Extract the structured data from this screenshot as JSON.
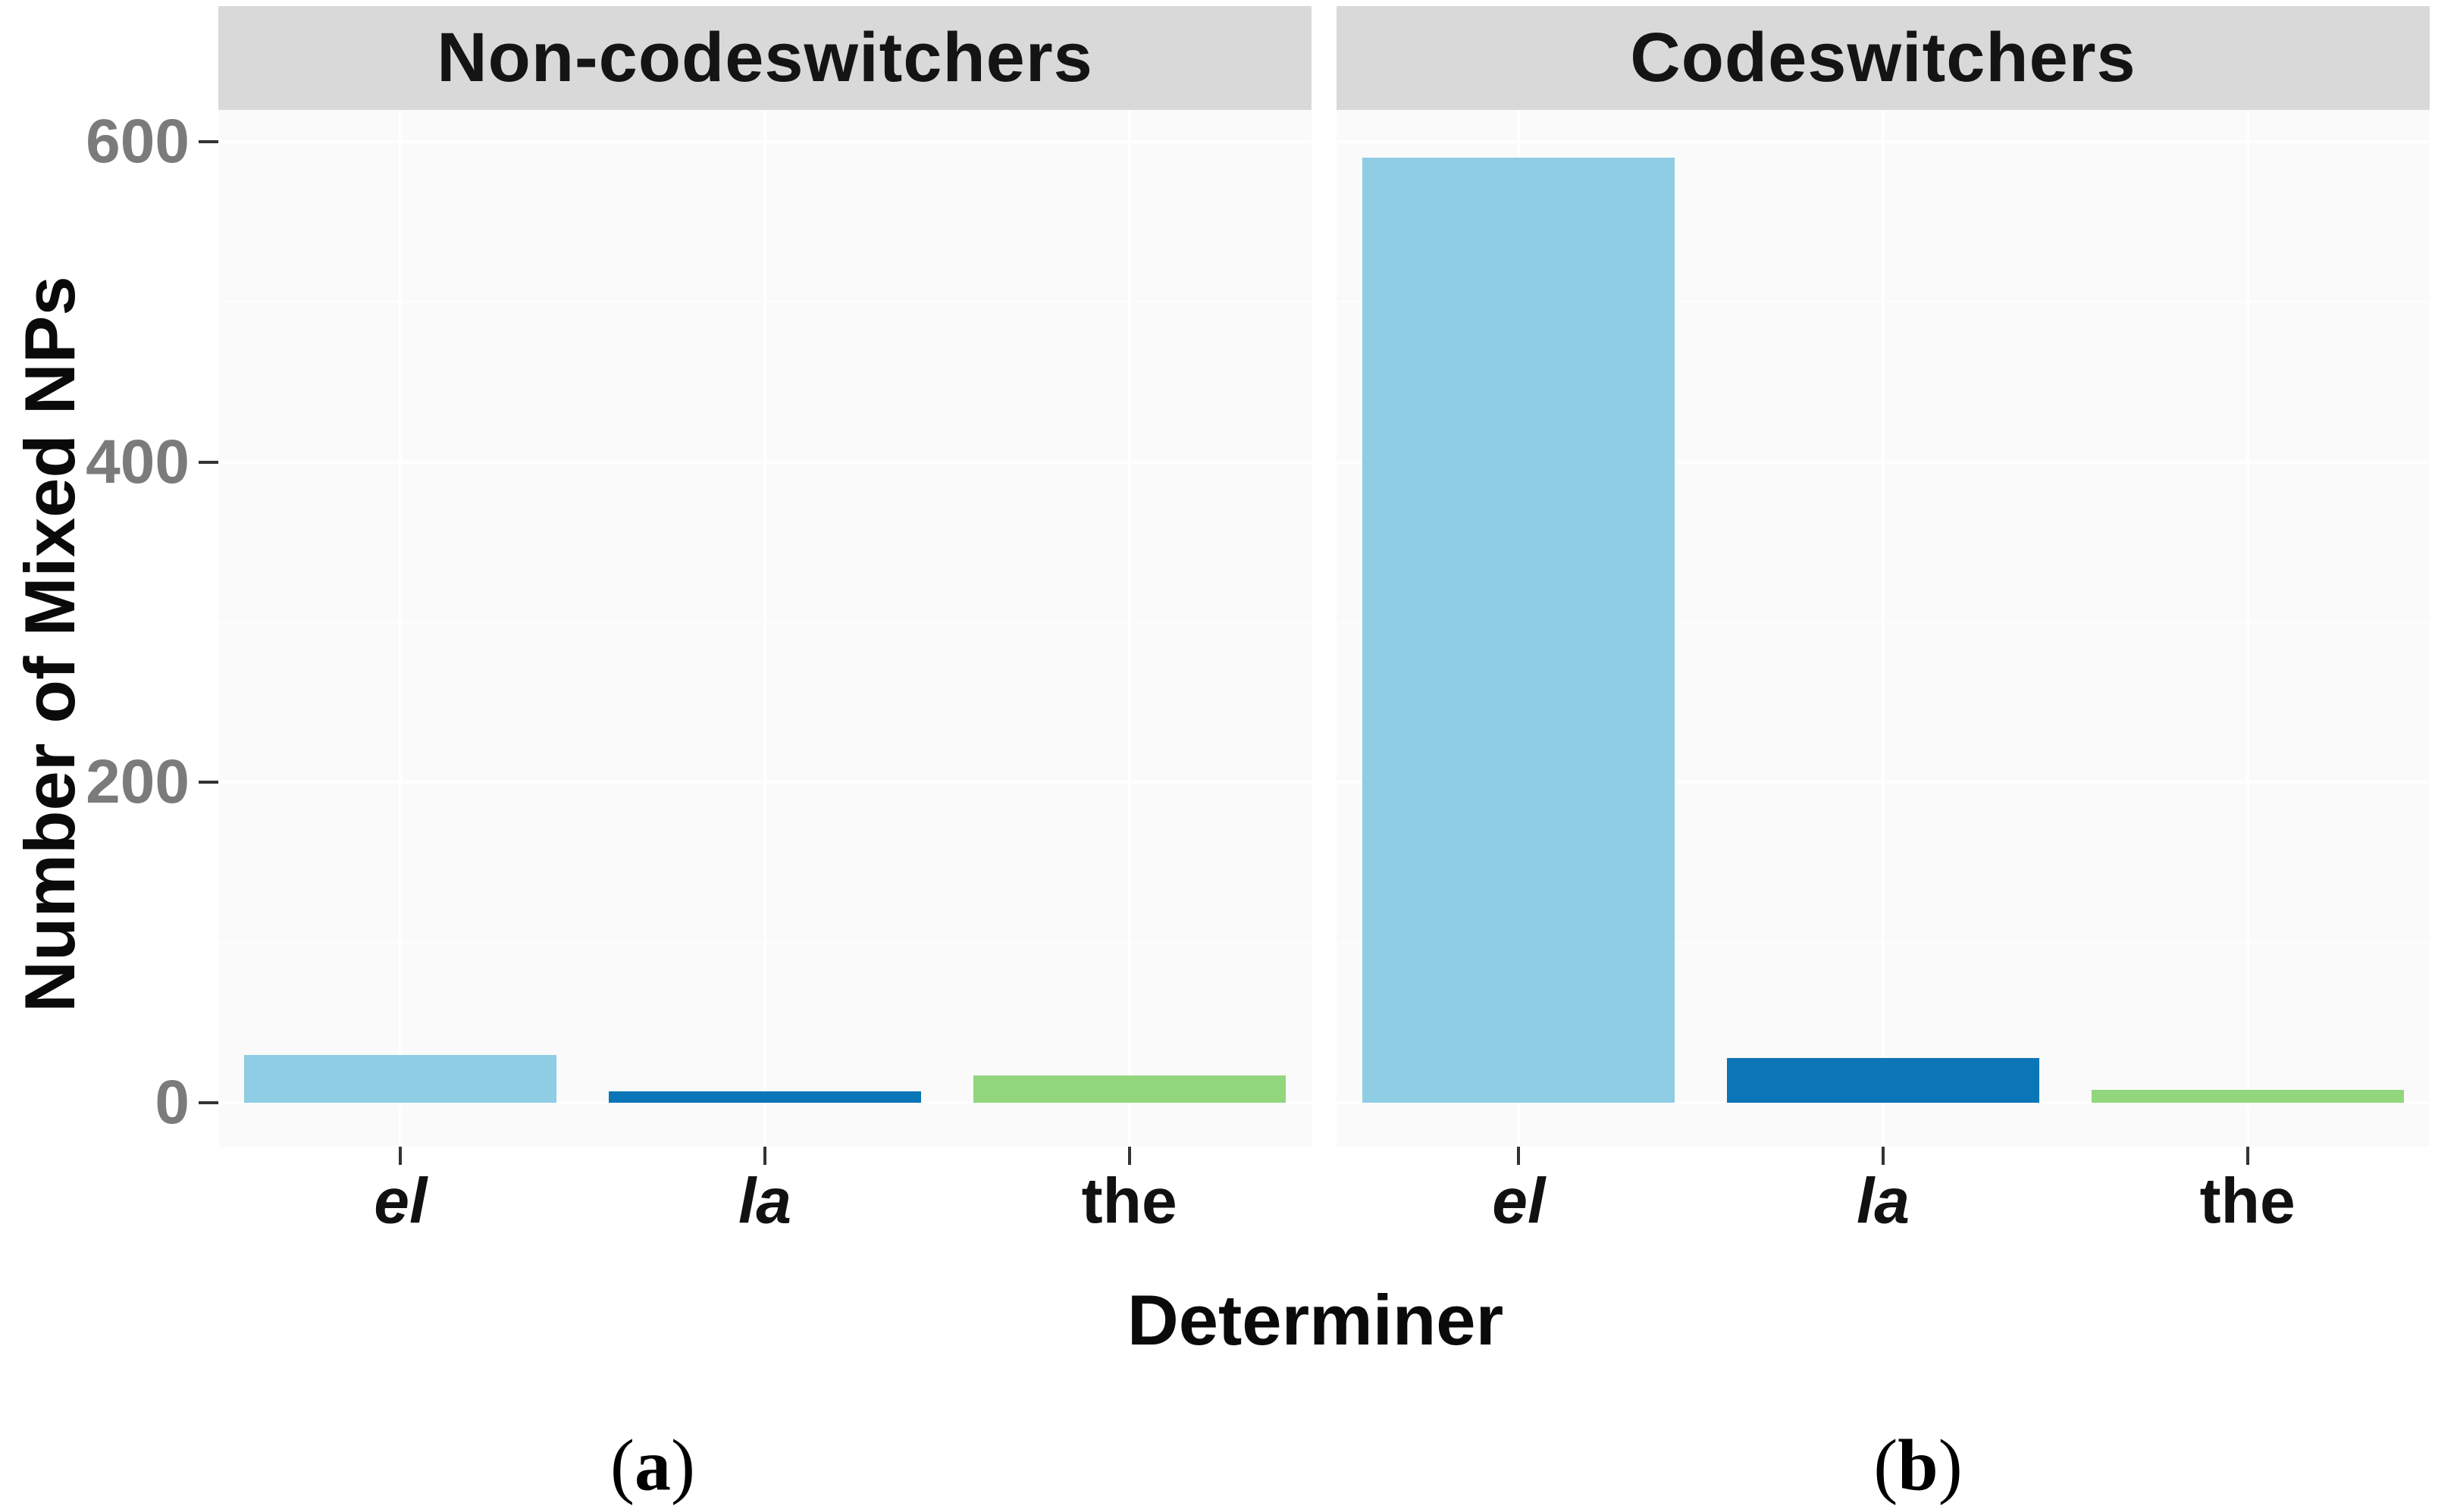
{
  "figure": {
    "y_axis_title": "Number of Mixed NPs",
    "x_axis_title": "Determiner",
    "panel_titles": [
      "Non-codeswitchers",
      "Codeswitchers"
    ],
    "subfigure_labels": {
      "open": "(",
      "letters": [
        "a",
        "b"
      ],
      "close": ")"
    }
  },
  "chart_data": {
    "type": "bar",
    "title": "",
    "facets": [
      "Non-codeswitchers",
      "Codeswitchers"
    ],
    "categories": [
      "el",
      "la",
      "the"
    ],
    "categories_italic": [
      true,
      true,
      false
    ],
    "series": [
      {
        "name": "Non-codeswitchers",
        "values": [
          30,
          7,
          17
        ]
      },
      {
        "name": "Codeswitchers",
        "values": [
          590,
          28,
          8
        ]
      }
    ],
    "bar_colors": [
      "#8FCDE4",
      "#0A75B7",
      "#92D67E"
    ],
    "xlabel": "Determiner",
    "ylabel": "Number of Mixed NPs",
    "yticks": [
      0,
      200,
      400,
      600
    ],
    "yminor": [
      100,
      300,
      500
    ],
    "ylim": [
      0,
      620
    ],
    "grid": "white major and minor horizontal lines, white vertical lines at category centers, on light-gray panel",
    "legend": "none",
    "panel_strip_background": "#D9D9D9",
    "panel_background": "#FAFAFA",
    "axis_tick_text_color": "#7B7B7B",
    "sublabels": [
      "(a)",
      "(b)"
    ]
  }
}
